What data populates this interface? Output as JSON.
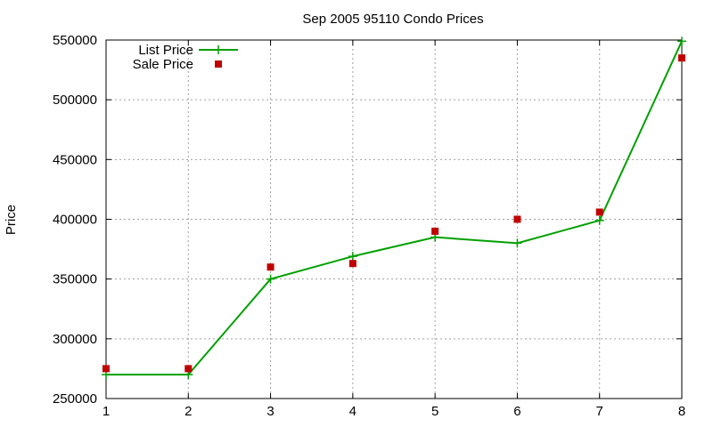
{
  "chart_data": {
    "type": "line",
    "title": "Sep 2005 95110 Condo Prices",
    "xlabel": "",
    "ylabel": "Price",
    "x": [
      1,
      2,
      3,
      4,
      5,
      6,
      7,
      8
    ],
    "xlim": [
      1,
      8
    ],
    "ylim": [
      250000,
      550000
    ],
    "xticks": [
      "1",
      "2",
      "3",
      "4",
      "5",
      "6",
      "7",
      "8"
    ],
    "yticks": [
      "250000",
      "300000",
      "350000",
      "400000",
      "450000",
      "500000",
      "550000"
    ],
    "grid": true,
    "legend_position": "top-left",
    "series": [
      {
        "name": "List Price",
        "style": "line-plus",
        "color": "#00a000",
        "values": [
          270000,
          270000,
          350000,
          369000,
          385000,
          380000,
          399000,
          549000
        ]
      },
      {
        "name": "Sale Price",
        "style": "square-points",
        "color": "#c00000",
        "values": [
          275000,
          275000,
          360000,
          363000,
          390000,
          400000,
          406000,
          535000
        ]
      }
    ]
  }
}
